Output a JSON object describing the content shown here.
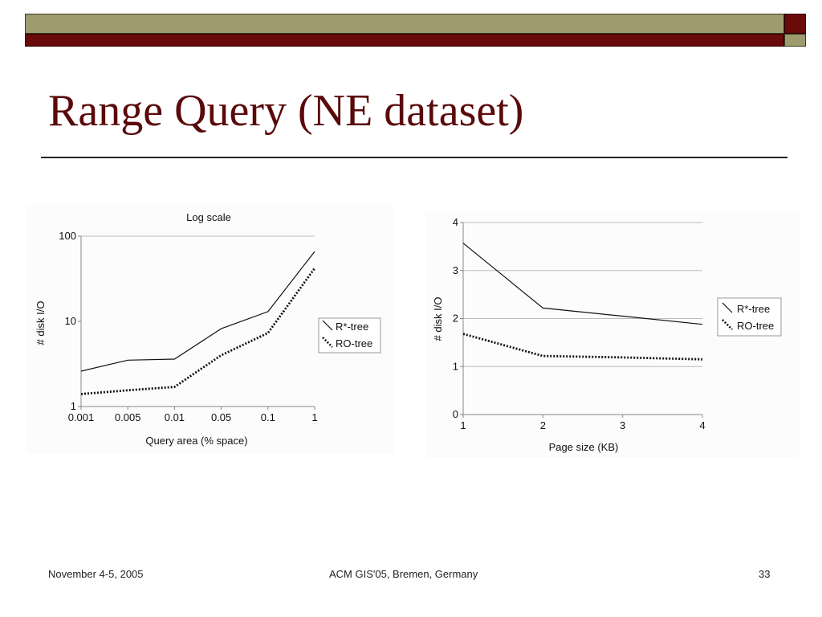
{
  "slide": {
    "title": "Range Query (NE dataset)",
    "colors": {
      "title": "#5a0a0a",
      "olive": "#9e9b6f",
      "maroon": "#6b0a0a"
    }
  },
  "footer": {
    "date": "November 4-5, 2005",
    "venue": "ACM GIS'05, Bremen, Germany",
    "page": "33"
  },
  "chart_data": [
    {
      "type": "line",
      "title": "Log scale",
      "xlabel": "Query area (% space)",
      "ylabel": "# disk I/O",
      "yscale": "log",
      "ylim": [
        1,
        100
      ],
      "yticks": [
        "1",
        "10",
        "100"
      ],
      "categories": [
        "0.001",
        "0.005",
        "0.01",
        "0.05",
        "0.1",
        "1"
      ],
      "legend_position": "right",
      "series": [
        {
          "name": "R*-tree",
          "style": "solid",
          "values": [
            2.6,
            3.5,
            3.6,
            8.2,
            13.0,
            66.0
          ]
        },
        {
          "name": "RO-tree",
          "style": "dotted",
          "values": [
            1.4,
            1.55,
            1.7,
            4.0,
            7.3,
            42.0
          ]
        }
      ]
    },
    {
      "type": "line",
      "title": "",
      "xlabel": "Page size (KB)",
      "ylabel": "# disk I/O",
      "ylim": [
        0,
        4
      ],
      "yticks": [
        "0",
        "1",
        "2",
        "3",
        "4"
      ],
      "categories": [
        "1",
        "2",
        "3",
        "4"
      ],
      "legend_position": "right",
      "grid": true,
      "series": [
        {
          "name": "R*-tree",
          "style": "solid",
          "values": [
            3.57,
            2.22,
            2.05,
            1.88
          ]
        },
        {
          "name": "RO-tree",
          "style": "dotted",
          "values": [
            1.68,
            1.22,
            1.19,
            1.15
          ]
        }
      ]
    }
  ]
}
